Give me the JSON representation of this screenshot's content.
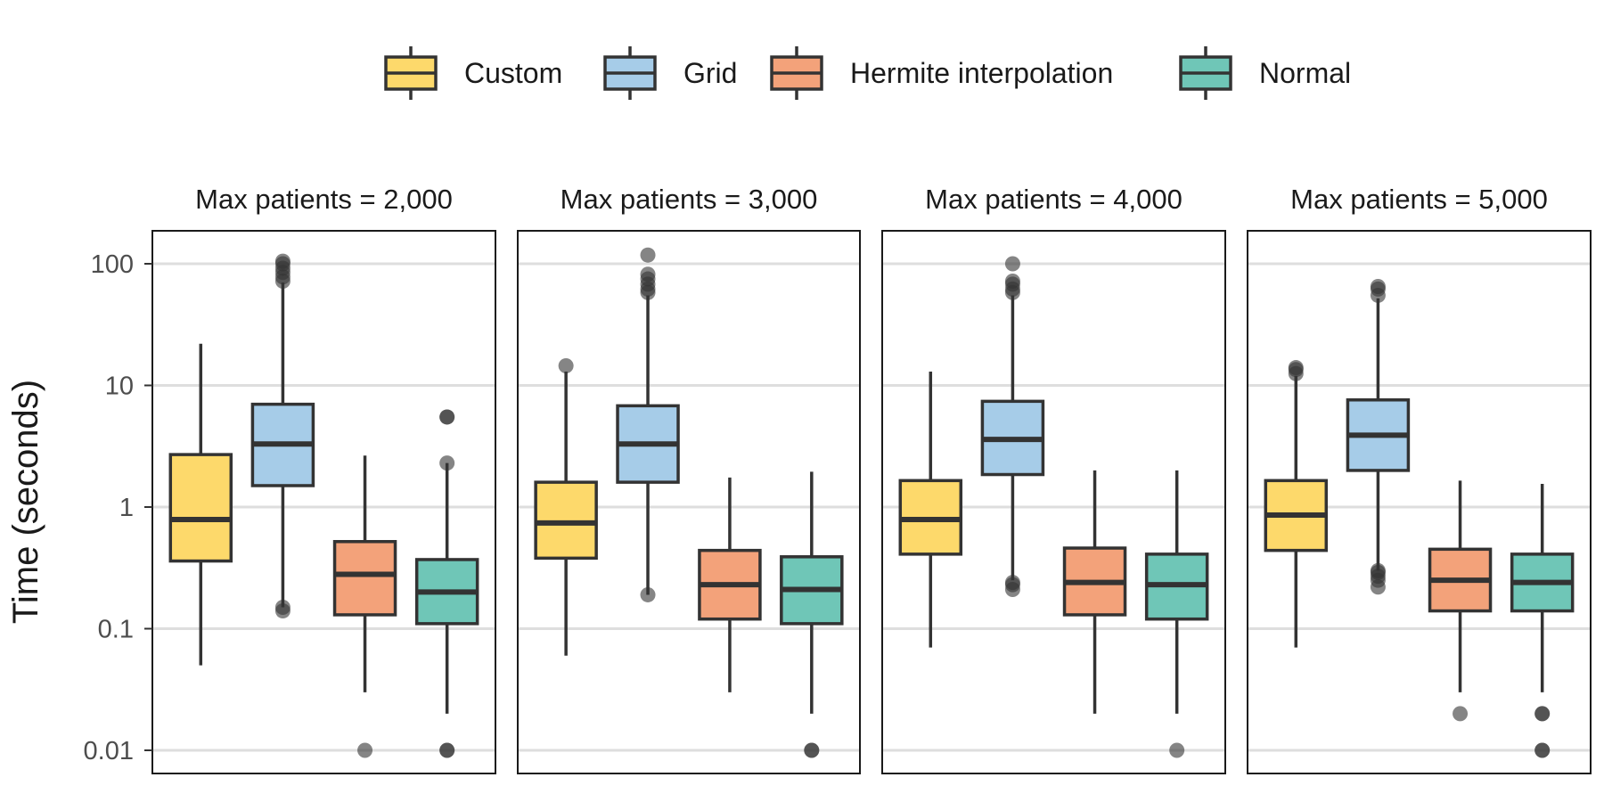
{
  "chart_data": {
    "type": "boxplot",
    "ylabel": "Time (seconds)",
    "y_scale": "log10",
    "ylim": [
      0.0068,
      230
    ],
    "y_ticks": [
      {
        "value": 100,
        "label": "100"
      },
      {
        "value": 10,
        "label": "10"
      },
      {
        "value": 1,
        "label": "1"
      },
      {
        "value": 0.1,
        "label": "0.1"
      },
      {
        "value": 0.01,
        "label": "0.01"
      }
    ],
    "grid": true,
    "legend_position": "top",
    "series": [
      {
        "name": "Custom",
        "color": "#FDD96B"
      },
      {
        "name": "Grid",
        "color": "#A6CCE8"
      },
      {
        "name": "Hermite interpolation",
        "color": "#F3A27A"
      },
      {
        "name": "Normal",
        "color": "#6FC6B7"
      }
    ],
    "facets": [
      {
        "title": "Max patients = 2,000",
        "boxes": [
          {
            "series": "Custom",
            "whisker_low": 0.05,
            "q1": 0.36,
            "median": 0.79,
            "q3": 2.7,
            "whisker_high": 22,
            "outliers": []
          },
          {
            "series": "Grid",
            "whisker_low": 0.15,
            "q1": 1.5,
            "median": 3.3,
            "q3": 7.0,
            "whisker_high": 70,
            "outliers": [
              0.14,
              0.15,
              72,
              78,
              85,
              92,
              100,
              105
            ]
          },
          {
            "series": "Hermite interpolation",
            "whisker_low": 0.03,
            "q1": 0.13,
            "median": 0.28,
            "q3": 0.52,
            "whisker_high": 2.65,
            "outliers": [
              0.01
            ]
          },
          {
            "series": "Normal",
            "whisker_low": 0.02,
            "q1": 0.11,
            "median": 0.2,
            "q3": 0.37,
            "whisker_high": 2.3,
            "outliers": [
              0.01,
              0.01,
              2.3,
              5.5,
              5.5
            ]
          }
        ]
      },
      {
        "title": "Max patients = 3,000",
        "boxes": [
          {
            "series": "Custom",
            "whisker_low": 0.06,
            "q1": 0.38,
            "median": 0.74,
            "q3": 1.6,
            "whisker_high": 13,
            "outliers": [
              14.5
            ]
          },
          {
            "series": "Grid",
            "whisker_low": 0.19,
            "q1": 1.6,
            "median": 3.3,
            "q3": 6.8,
            "whisker_high": 55,
            "outliers": [
              0.19,
              58,
              62,
              68,
              75,
              82,
              118
            ]
          },
          {
            "series": "Hermite interpolation",
            "whisker_low": 0.03,
            "q1": 0.12,
            "median": 0.23,
            "q3": 0.44,
            "whisker_high": 1.75,
            "outliers": []
          },
          {
            "series": "Normal",
            "whisker_low": 0.02,
            "q1": 0.11,
            "median": 0.21,
            "q3": 0.39,
            "whisker_high": 1.95,
            "outliers": [
              0.01,
              0.01
            ]
          }
        ]
      },
      {
        "title": "Max patients = 4,000",
        "boxes": [
          {
            "series": "Custom",
            "whisker_low": 0.07,
            "q1": 0.41,
            "median": 0.79,
            "q3": 1.65,
            "whisker_high": 13,
            "outliers": []
          },
          {
            "series": "Grid",
            "whisker_low": 0.25,
            "q1": 1.85,
            "median": 3.6,
            "q3": 7.4,
            "whisker_high": 55,
            "outliers": [
              0.21,
              0.23,
              0.24,
              58,
              62,
              68,
              72,
              100
            ]
          },
          {
            "series": "Hermite interpolation",
            "whisker_low": 0.02,
            "q1": 0.13,
            "median": 0.24,
            "q3": 0.46,
            "whisker_high": 2.0,
            "outliers": []
          },
          {
            "series": "Normal",
            "whisker_low": 0.02,
            "q1": 0.12,
            "median": 0.23,
            "q3": 0.41,
            "whisker_high": 2.0,
            "outliers": [
              0.01
            ]
          }
        ]
      },
      {
        "title": "Max patients = 5,000",
        "boxes": [
          {
            "series": "Custom",
            "whisker_low": 0.07,
            "q1": 0.44,
            "median": 0.86,
            "q3": 1.65,
            "whisker_high": 12,
            "outliers": [
              12.5,
              13.5,
              14
            ]
          },
          {
            "series": "Grid",
            "whisker_low": 0.3,
            "q1": 2.0,
            "median": 3.9,
            "q3": 7.6,
            "whisker_high": 52,
            "outliers": [
              0.22,
              0.25,
              0.27,
              0.29,
              0.3,
              55,
              62,
              65
            ]
          },
          {
            "series": "Hermite interpolation",
            "whisker_low": 0.03,
            "q1": 0.14,
            "median": 0.25,
            "q3": 0.45,
            "whisker_high": 1.65,
            "outliers": [
              0.02
            ]
          },
          {
            "series": "Normal",
            "whisker_low": 0.03,
            "q1": 0.14,
            "median": 0.24,
            "q3": 0.41,
            "whisker_high": 1.55,
            "outliers": [
              0.01,
              0.01,
              0.02,
              0.02
            ]
          }
        ]
      }
    ]
  }
}
